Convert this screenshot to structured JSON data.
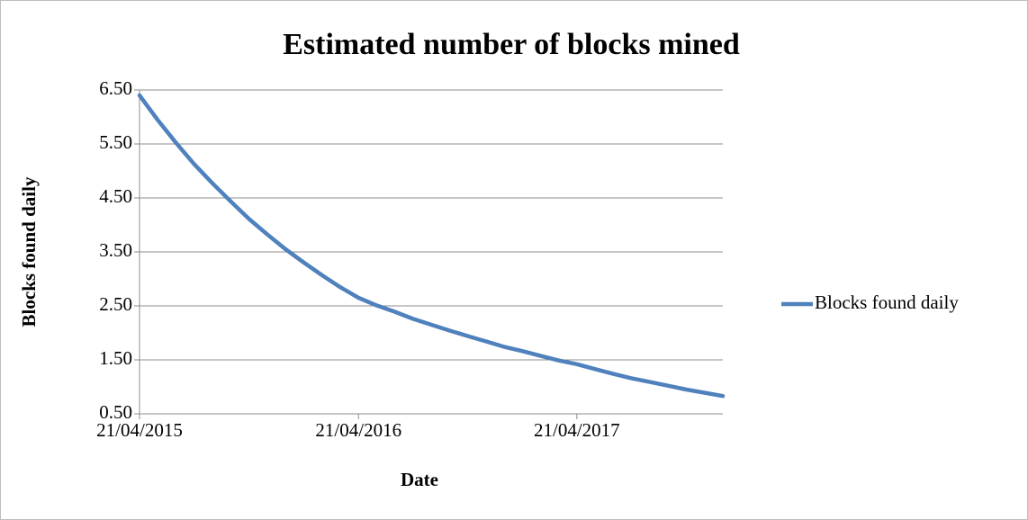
{
  "chart_data": {
    "type": "line",
    "title": "Estimated number of blocks mined",
    "x_label": "Date",
    "y_label": "Blocks found daily",
    "x": [
      "2015-04-21",
      "2015-05-21",
      "2015-06-21",
      "2015-07-21",
      "2015-08-21",
      "2015-09-21",
      "2015-10-21",
      "2015-11-21",
      "2015-12-21",
      "2016-01-21",
      "2016-02-21",
      "2016-03-21",
      "2016-04-21",
      "2016-05-21",
      "2016-06-21",
      "2016-07-21",
      "2016-08-21",
      "2016-09-21",
      "2016-10-21",
      "2016-11-21",
      "2016-12-21",
      "2017-01-21",
      "2017-02-21",
      "2017-03-21",
      "2017-04-21",
      "2017-05-21",
      "2017-06-21",
      "2017-07-21",
      "2017-08-21",
      "2017-09-21",
      "2017-10-21",
      "2017-11-21",
      "2017-12-21"
    ],
    "series": [
      {
        "name": "Blocks found daily",
        "color": "#4f81bd",
        "values": [
          6.4,
          5.95,
          5.52,
          5.13,
          4.77,
          4.43,
          4.11,
          3.82,
          3.55,
          3.3,
          3.06,
          2.85,
          2.65,
          2.51,
          2.39,
          2.26,
          2.15,
          2.04,
          1.94,
          1.84,
          1.74,
          1.66,
          1.57,
          1.49,
          1.42,
          1.33,
          1.24,
          1.16,
          1.09,
          1.02,
          0.95,
          0.89,
          0.83
        ]
      }
    ],
    "xlim": [
      "2015-04-21",
      "2017-12-21"
    ],
    "xticks": [
      {
        "value": "2015-04-21",
        "label": "21/04/2015"
      },
      {
        "value": "2016-04-21",
        "label": "21/04/2016"
      },
      {
        "value": "2017-04-21",
        "label": "21/04/2017"
      }
    ],
    "ylim": [
      0.5,
      6.5
    ],
    "yticks": [
      {
        "value": 0.5,
        "label": "0.50"
      },
      {
        "value": 1.5,
        "label": "1.50"
      },
      {
        "value": 2.5,
        "label": "2.50"
      },
      {
        "value": 3.5,
        "label": "3.50"
      },
      {
        "value": 4.5,
        "label": "4.50"
      },
      {
        "value": 5.5,
        "label": "5.50"
      },
      {
        "value": 6.5,
        "label": "6.50"
      }
    ],
    "grid": true,
    "legend": "right"
  }
}
